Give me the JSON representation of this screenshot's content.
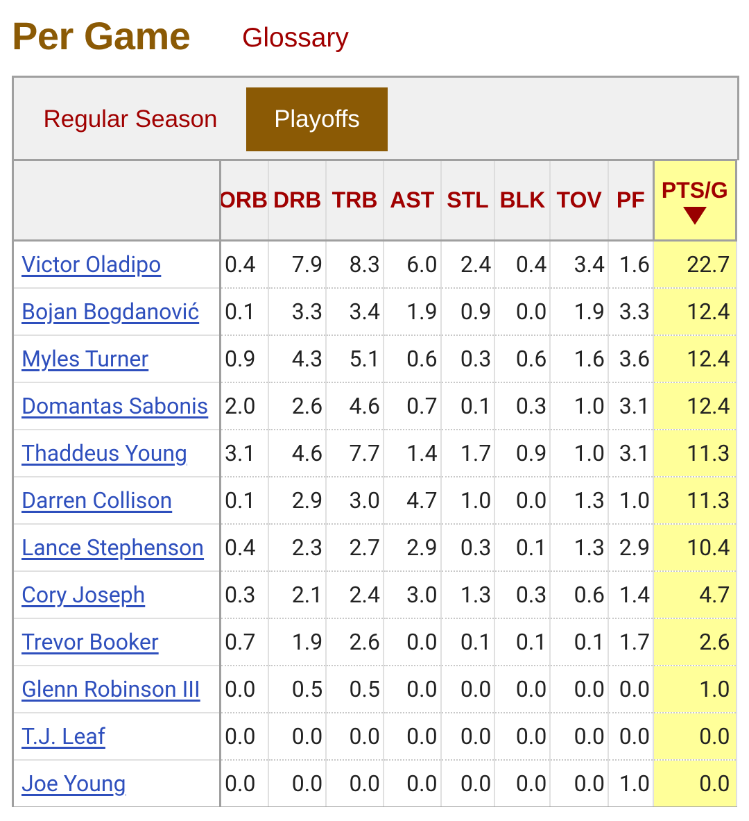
{
  "header": {
    "title": "Per Game",
    "glossary_label": "Glossary"
  },
  "tabs": {
    "regular": "Regular Season",
    "playoffs": "Playoffs",
    "active": "Playoffs"
  },
  "table": {
    "columns": [
      "",
      "ORB",
      "DRB",
      "TRB",
      "AST",
      "STL",
      "BLK",
      "TOV",
      "PF",
      "PTS/G"
    ],
    "sorted_by": "PTS/G",
    "sort_direction": "descending",
    "rows": [
      {
        "player": "Victor Oladipo",
        "stats": [
          "0.4",
          "7.9",
          "8.3",
          "6.0",
          "2.4",
          "0.4",
          "3.4",
          "1.6",
          "22.7"
        ]
      },
      {
        "player": "Bojan Bogdanović",
        "stats": [
          "0.1",
          "3.3",
          "3.4",
          "1.9",
          "0.9",
          "0.0",
          "1.9",
          "3.3",
          "12.4"
        ]
      },
      {
        "player": "Myles Turner",
        "stats": [
          "0.9",
          "4.3",
          "5.1",
          "0.6",
          "0.3",
          "0.6",
          "1.6",
          "3.6",
          "12.4"
        ]
      },
      {
        "player": "Domantas Sabonis",
        "stats": [
          "2.0",
          "2.6",
          "4.6",
          "0.7",
          "0.1",
          "0.3",
          "1.0",
          "3.1",
          "12.4"
        ]
      },
      {
        "player": "Thaddeus Young",
        "stats": [
          "3.1",
          "4.6",
          "7.7",
          "1.4",
          "1.7",
          "0.9",
          "1.0",
          "3.1",
          "11.3"
        ]
      },
      {
        "player": "Darren Collison",
        "stats": [
          "0.1",
          "2.9",
          "3.0",
          "4.7",
          "1.0",
          "0.0",
          "1.3",
          "1.0",
          "11.3"
        ]
      },
      {
        "player": "Lance Stephenson",
        "stats": [
          "0.4",
          "2.3",
          "2.7",
          "2.9",
          "0.3",
          "0.1",
          "1.3",
          "2.9",
          "10.4"
        ]
      },
      {
        "player": "Cory Joseph",
        "stats": [
          "0.3",
          "2.1",
          "2.4",
          "3.0",
          "1.3",
          "0.3",
          "0.6",
          "1.4",
          "4.7"
        ]
      },
      {
        "player": "Trevor Booker",
        "stats": [
          "0.7",
          "1.9",
          "2.6",
          "0.0",
          "0.1",
          "0.1",
          "0.1",
          "1.7",
          "2.6"
        ]
      },
      {
        "player": "Glenn Robinson III",
        "stats": [
          "0.0",
          "0.5",
          "0.5",
          "0.0",
          "0.0",
          "0.0",
          "0.0",
          "0.0",
          "1.0"
        ]
      },
      {
        "player": "T.J. Leaf",
        "stats": [
          "0.0",
          "0.0",
          "0.0",
          "0.0",
          "0.0",
          "0.0",
          "0.0",
          "0.0",
          "0.0"
        ]
      },
      {
        "player": "Joe Young",
        "stats": [
          "0.0",
          "0.0",
          "0.0",
          "0.0",
          "0.0",
          "0.0",
          "0.0",
          "1.0",
          "0.0"
        ]
      }
    ]
  },
  "colors": {
    "title": "#8b5a05",
    "header_text": "#a00000",
    "link": "#2e4fbd",
    "active_tab_bg": "#8b5a05",
    "sorted_column_bg": "#ffff99",
    "sort_arrow": "#990000"
  }
}
